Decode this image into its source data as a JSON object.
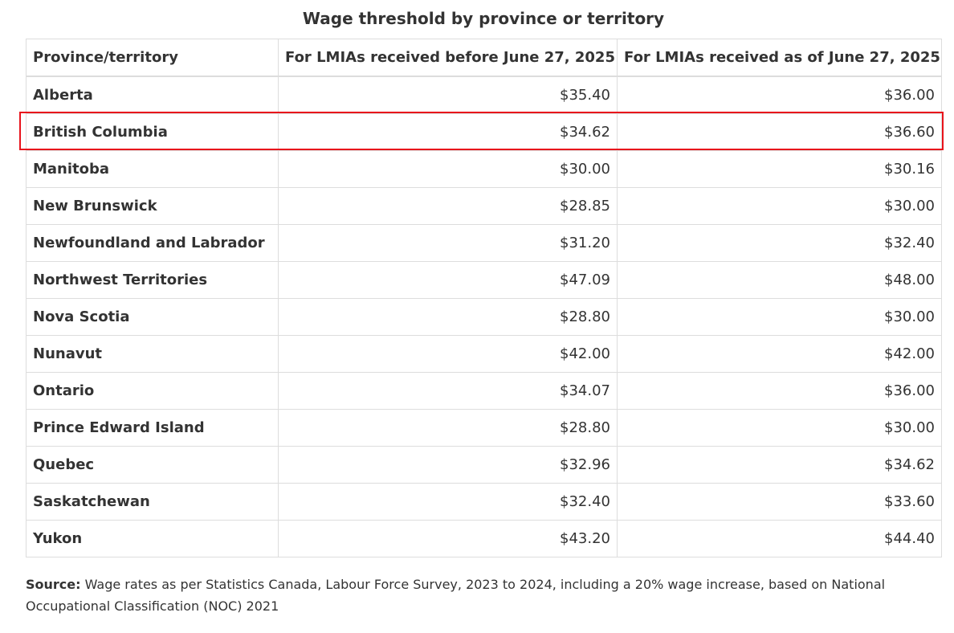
{
  "table": {
    "caption": "Wage threshold by province or territory",
    "headers": [
      "Province/territory",
      "For LMIAs received before June 27, 2025",
      "For LMIAs received as of June 27, 2025"
    ],
    "rows": [
      {
        "province": "Alberta",
        "before": "$35.40",
        "after": "$36.00"
      },
      {
        "province": "British Columbia",
        "before": "$34.62",
        "after": "$36.60"
      },
      {
        "province": "Manitoba",
        "before": "$30.00",
        "after": "$30.16"
      },
      {
        "province": "New Brunswick",
        "before": "$28.85",
        "after": "$30.00"
      },
      {
        "province": "Newfoundland and Labrador",
        "before": "$31.20",
        "after": "$32.40"
      },
      {
        "province": "Northwest Territories",
        "before": "$47.09",
        "after": "$48.00"
      },
      {
        "province": "Nova Scotia",
        "before": "$28.80",
        "after": "$30.00"
      },
      {
        "province": "Nunavut",
        "before": "$42.00",
        "after": "$42.00"
      },
      {
        "province": "Ontario",
        "before": "$34.07",
        "after": "$36.00"
      },
      {
        "province": "Prince Edward Island",
        "before": "$28.80",
        "after": "$30.00"
      },
      {
        "province": "Quebec",
        "before": "$32.96",
        "after": "$34.62"
      },
      {
        "province": "Saskatchewan",
        "before": "$32.40",
        "after": "$33.60"
      },
      {
        "province": "Yukon",
        "before": "$43.20",
        "after": "$44.40"
      }
    ],
    "highlighted_row": "British Columbia"
  },
  "source": {
    "label": "Source:",
    "text": " Wage rates as per Statistics Canada, Labour Force Survey, 2023 to 2024, including a 20% wage increase, based on National Occupational Classification (NOC) 2021"
  },
  "colors": {
    "highlight": "#e8141c",
    "border": "#dddddd",
    "text": "#333333"
  }
}
